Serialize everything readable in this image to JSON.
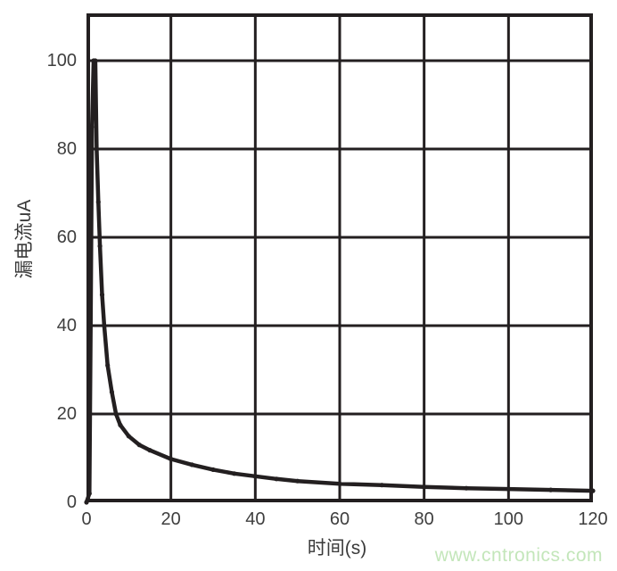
{
  "chart_data": {
    "type": "line",
    "title": "",
    "xlabel": "时间(s)",
    "ylabel": "漏电流uA",
    "xlim": [
      0,
      120
    ],
    "ylim": [
      0,
      110.7
    ],
    "x_ticks": [
      0,
      20,
      40,
      60,
      80,
      100,
      120
    ],
    "y_ticks": [
      0,
      20,
      40,
      60,
      80,
      100
    ],
    "grid": true,
    "legend": "none",
    "series": [
      {
        "name": "漏电流",
        "x": [
          0,
          0.7,
          1.0,
          1.3,
          1.7,
          2.1,
          2.4,
          2.8,
          3.2,
          3.7,
          4.2,
          5,
          6,
          7,
          8,
          10,
          12.5,
          15,
          20,
          25,
          30,
          35,
          40,
          45,
          50,
          60,
          70,
          80,
          90,
          100,
          110,
          120
        ],
        "y": [
          0,
          2,
          40,
          85,
          100,
          100,
          80,
          68,
          58,
          47,
          40,
          31,
          25,
          20,
          17.5,
          15,
          13,
          11.8,
          9.8,
          8.5,
          7.4,
          6.5,
          5.9,
          5.3,
          4.8,
          4.2,
          3.9,
          3.5,
          3.2,
          3.0,
          2.8,
          2.6
        ]
      }
    ]
  },
  "watermark": {
    "text": "www.cntronics.com",
    "color": "#c3e6ba"
  },
  "colors": {
    "line": "#231f20",
    "grid": "#231f20",
    "border": "#231f20",
    "tick_label": "#3e3e3e"
  }
}
